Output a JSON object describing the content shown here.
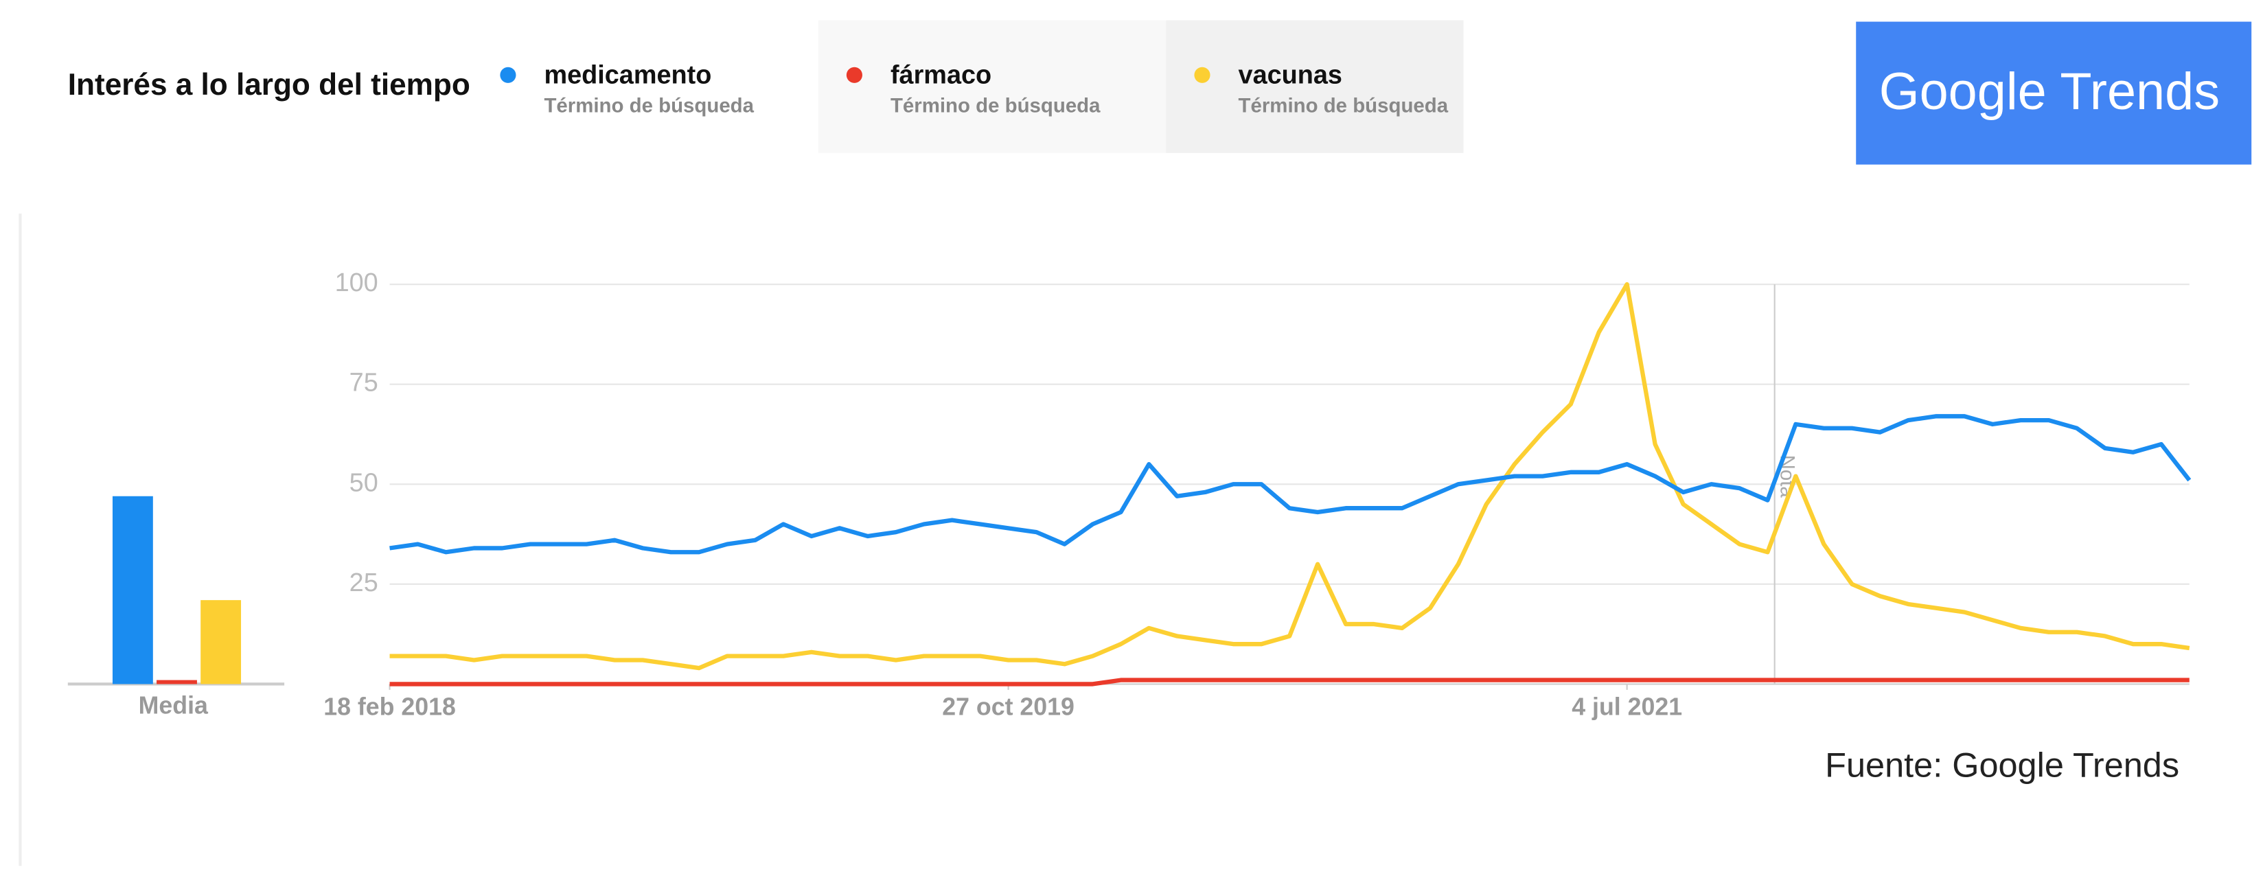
{
  "chart_data": {
    "type": "line",
    "title": "Interés a lo largo del tiempo",
    "legend_subtitle": "Término de búsqueda",
    "source": "Fuente: Google Trends",
    "note": {
      "text": "Nota",
      "x": "2021-11-28"
    },
    "media": {
      "label": "Media",
      "values": [
        47,
        1,
        21
      ]
    },
    "ylim": [
      0,
      100
    ],
    "yticks": [
      25,
      50,
      75,
      100
    ],
    "grid": true,
    "xlim": [
      "2018-02-18",
      "2023-01-15"
    ],
    "xticks": [
      {
        "value": "2018-02-18",
        "label": "18 feb 2018"
      },
      {
        "value": "2019-10-27",
        "label": "27 oct 2019"
      },
      {
        "value": "2021-07-04",
        "label": "4 jul 2021"
      }
    ],
    "x": [
      "2018-02-18",
      "2018-03-18",
      "2018-04-15",
      "2018-05-13",
      "2018-06-10",
      "2018-07-08",
      "2018-08-05",
      "2018-09-02",
      "2018-09-30",
      "2018-10-28",
      "2018-11-25",
      "2018-12-23",
      "2019-01-20",
      "2019-02-17",
      "2019-03-17",
      "2019-04-14",
      "2019-05-12",
      "2019-06-09",
      "2019-07-07",
      "2019-08-04",
      "2019-09-01",
      "2019-09-29",
      "2019-10-27",
      "2019-11-24",
      "2019-12-22",
      "2020-01-19",
      "2020-02-16",
      "2020-03-15",
      "2020-04-12",
      "2020-05-10",
      "2020-06-07",
      "2020-07-05",
      "2020-08-02",
      "2020-08-30",
      "2020-09-27",
      "2020-10-25",
      "2020-11-22",
      "2020-12-20",
      "2021-01-17",
      "2021-02-14",
      "2021-03-14",
      "2021-04-11",
      "2021-05-09",
      "2021-06-06",
      "2021-07-04",
      "2021-08-01",
      "2021-08-29",
      "2021-09-26",
      "2021-10-24",
      "2021-11-21",
      "2021-12-19",
      "2022-01-16",
      "2022-02-13",
      "2022-03-13",
      "2022-04-10",
      "2022-05-08",
      "2022-06-05",
      "2022-07-03",
      "2022-07-31",
      "2022-08-28",
      "2022-09-25",
      "2022-10-23",
      "2022-11-20",
      "2022-12-18",
      "2023-01-15"
    ],
    "series": [
      {
        "name": "medicamento",
        "color": "#1a8cf0",
        "values": [
          34,
          35,
          33,
          34,
          34,
          35,
          35,
          35,
          36,
          34,
          33,
          33,
          35,
          36,
          40,
          37,
          39,
          37,
          38,
          40,
          41,
          40,
          39,
          38,
          35,
          40,
          43,
          55,
          47,
          48,
          50,
          50,
          44,
          43,
          44,
          44,
          44,
          47,
          50,
          51,
          52,
          52,
          53,
          53,
          55,
          52,
          48,
          50,
          49,
          46,
          65,
          64,
          64,
          63,
          66,
          67,
          67,
          65,
          66,
          66,
          64,
          59,
          58,
          60,
          51
        ]
      },
      {
        "name": "fármaco",
        "color": "#ea3a2a",
        "values": [
          0,
          0,
          0,
          0,
          0,
          0,
          0,
          0,
          0,
          0,
          0,
          0,
          0,
          0,
          0,
          0,
          0,
          0,
          0,
          0,
          0,
          0,
          0,
          0,
          0,
          0,
          1,
          1,
          1,
          1,
          1,
          1,
          1,
          1,
          1,
          1,
          1,
          1,
          1,
          1,
          1,
          1,
          1,
          1,
          1,
          1,
          1,
          1,
          1,
          1,
          1,
          1,
          1,
          1,
          1,
          1,
          1,
          1,
          1,
          1,
          1,
          1,
          1,
          1,
          1
        ]
      },
      {
        "name": "vacunas",
        "color": "#fccf32",
        "values": [
          7,
          7,
          7,
          6,
          7,
          7,
          7,
          7,
          6,
          6,
          5,
          4,
          7,
          7,
          7,
          8,
          7,
          7,
          6,
          7,
          7,
          7,
          6,
          6,
          5,
          7,
          10,
          14,
          12,
          11,
          10,
          10,
          12,
          30,
          15,
          15,
          14,
          19,
          30,
          45,
          55,
          63,
          70,
          88,
          100,
          60,
          45,
          40,
          35,
          33,
          52,
          35,
          25,
          22,
          20,
          19,
          18,
          16,
          14,
          13,
          13,
          12,
          10,
          10,
          9
        ]
      }
    ]
  },
  "logo": "Google Trends"
}
